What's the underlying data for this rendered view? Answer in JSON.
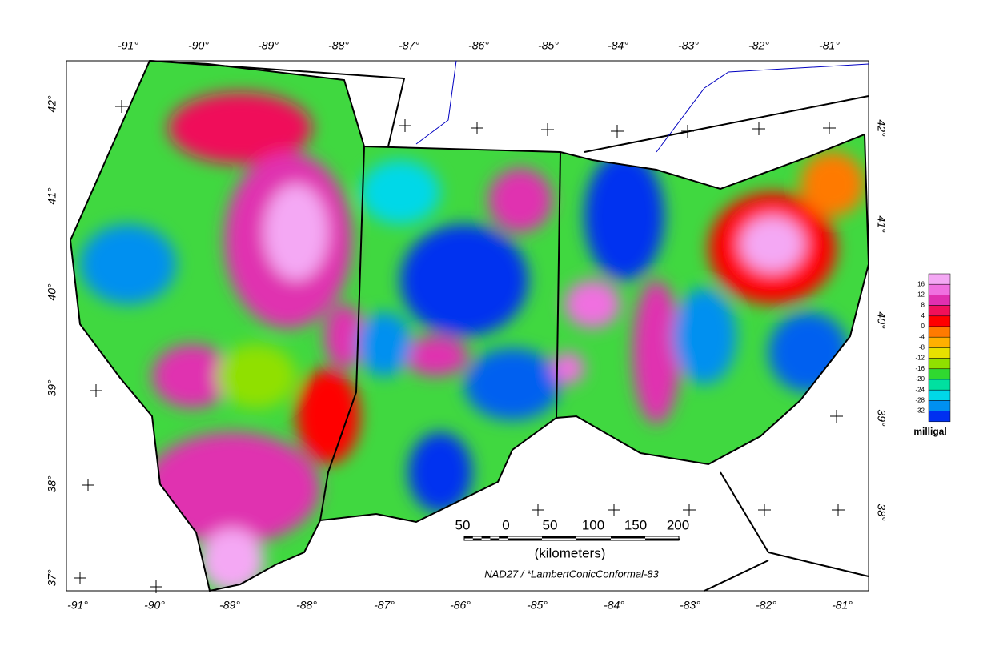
{
  "map": {
    "top_labels": [
      "-91°",
      "-90°",
      "-89°",
      "-88°",
      "-87°",
      "-86°",
      "-85°",
      "-84°",
      "-83°",
      "-82°",
      "-81°"
    ],
    "bottom_labels": [
      "-91°",
      "-90°",
      "-89°",
      "-88°",
      "-87°",
      "-86°",
      "-85°",
      "-84°",
      "-83°",
      "-82°",
      "-81°"
    ],
    "left_labels": [
      "42°",
      "41°",
      "40°",
      "39°",
      "38°",
      "37°"
    ],
    "right_labels": [
      "42°",
      "41°",
      "40°",
      "39°",
      "38°"
    ],
    "scale_bar": {
      "ticks": [
        "50",
        "0",
        "50",
        "100",
        "150",
        "200"
      ],
      "unit": "(kilometers)"
    },
    "projection": "NAD27 / *LambertConicConformal-83",
    "legend": {
      "title": "milligal",
      "labels": [
        16,
        12,
        8,
        4,
        0,
        -4,
        -8,
        -12,
        -16,
        -20,
        -24,
        -28,
        -32
      ],
      "colors": [
        "#f4a8f4",
        "#f070e0",
        "#e030b0",
        "#f0105a",
        "#ff0000",
        "#ff7a00",
        "#ffb000",
        "#e8e000",
        "#90e000",
        "#30d830",
        "#00e0a0",
        "#00d8e8",
        "#0090f0",
        "#0030f0"
      ]
    }
  }
}
